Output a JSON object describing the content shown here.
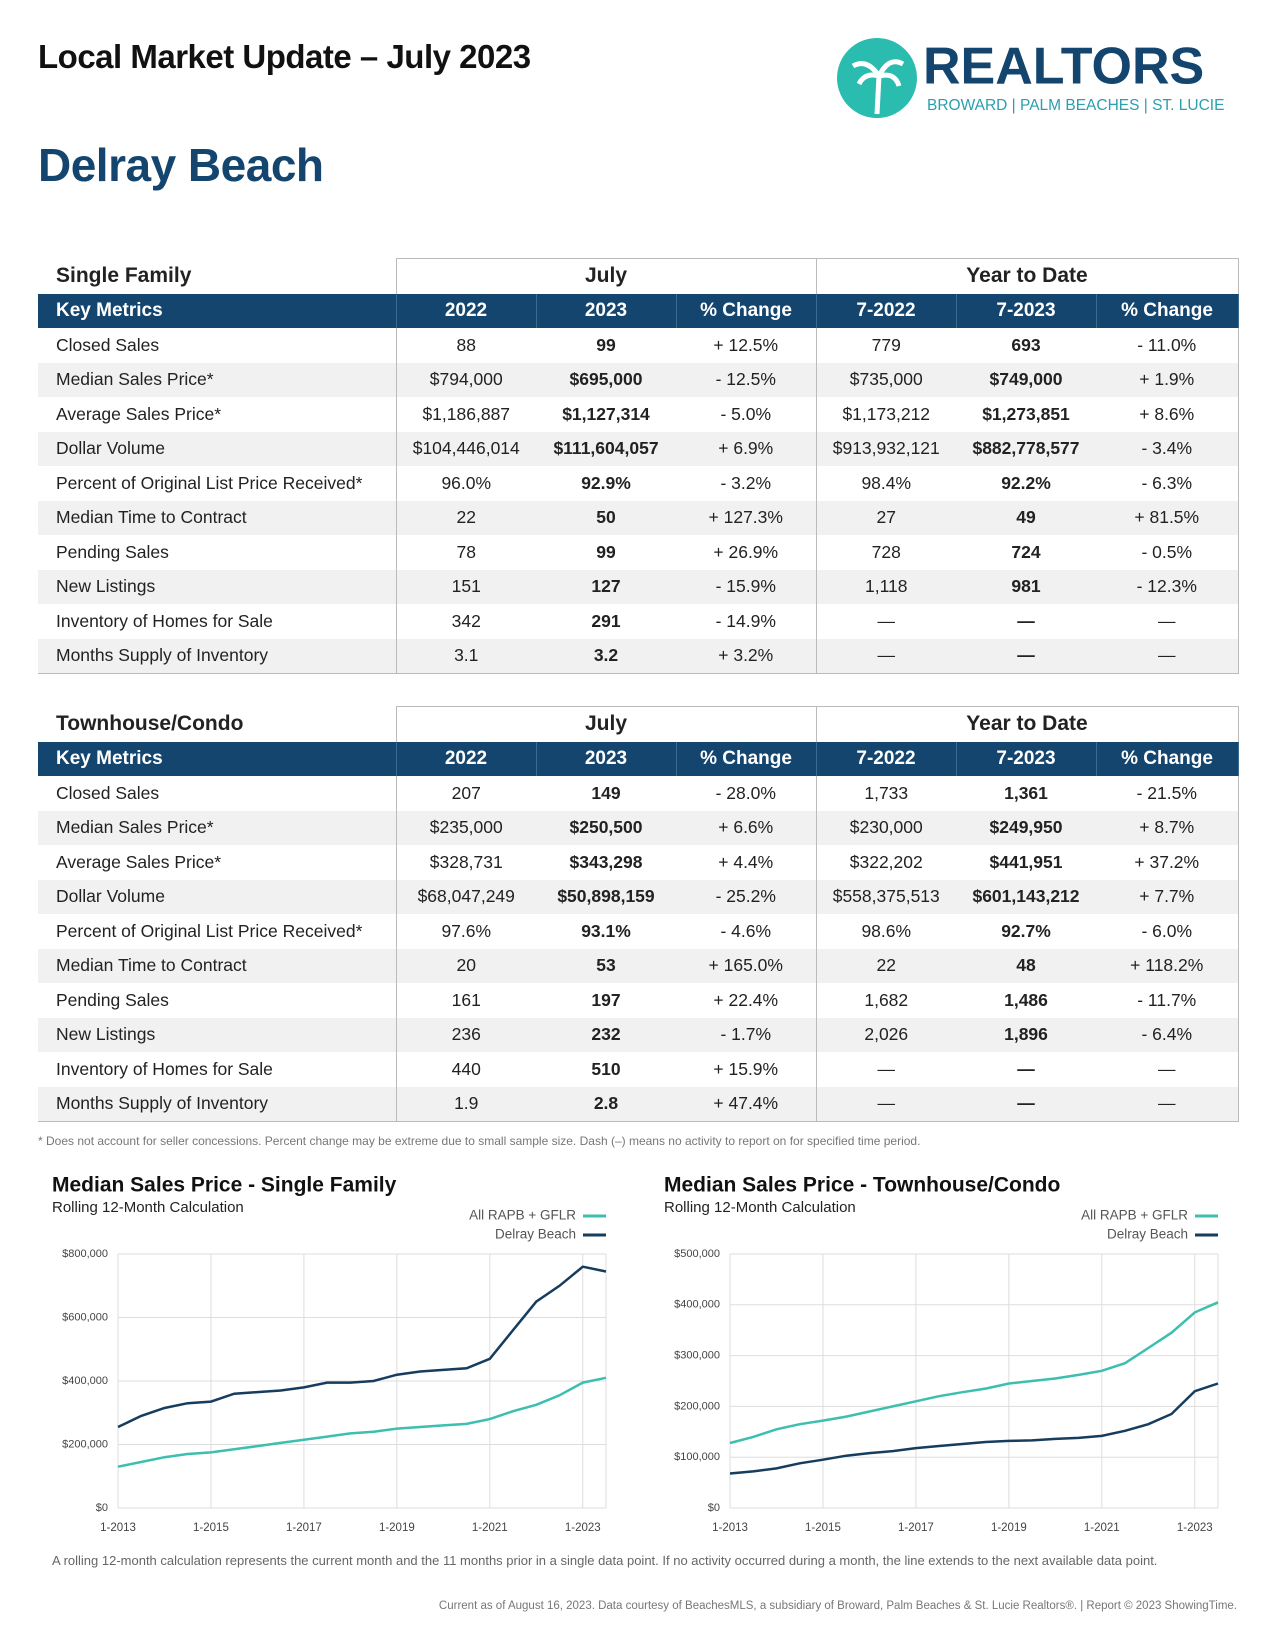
{
  "header": {
    "title": "Local Market Update – July 2023",
    "logo_name": "REALTORS",
    "logo_sub": "BROWARD | PALM BEACHES | ST. LUCIE"
  },
  "area": "Delray Beach",
  "tables": [
    {
      "section": "Single Family",
      "groups": [
        "July",
        "Year to Date"
      ],
      "columns": [
        "Key Metrics",
        "2022",
        "2023",
        "% Change",
        "7-2022",
        "7-2023",
        "% Change"
      ],
      "rows": [
        [
          "Closed Sales",
          "88",
          "99",
          "+ 12.5%",
          "779",
          "693",
          "- 11.0%"
        ],
        [
          "Median Sales Price*",
          "$794,000",
          "$695,000",
          "- 12.5%",
          "$735,000",
          "$749,000",
          "+ 1.9%"
        ],
        [
          "Average Sales Price*",
          "$1,186,887",
          "$1,127,314",
          "- 5.0%",
          "$1,173,212",
          "$1,273,851",
          "+ 8.6%"
        ],
        [
          "Dollar Volume",
          "$104,446,014",
          "$111,604,057",
          "+ 6.9%",
          "$913,932,121",
          "$882,778,577",
          "- 3.4%"
        ],
        [
          "Percent of Original List Price Received*",
          "96.0%",
          "92.9%",
          "- 3.2%",
          "98.4%",
          "92.2%",
          "- 6.3%"
        ],
        [
          "Median Time to Contract",
          "22",
          "50",
          "+ 127.3%",
          "27",
          "49",
          "+ 81.5%"
        ],
        [
          "Pending Sales",
          "78",
          "99",
          "+ 26.9%",
          "728",
          "724",
          "- 0.5%"
        ],
        [
          "New Listings",
          "151",
          "127",
          "- 15.9%",
          "1,118",
          "981",
          "- 12.3%"
        ],
        [
          "Inventory of Homes for Sale",
          "342",
          "291",
          "- 14.9%",
          "—",
          "—",
          "—"
        ],
        [
          "Months Supply of Inventory",
          "3.1",
          "3.2",
          "+ 3.2%",
          "—",
          "—",
          "—"
        ]
      ]
    },
    {
      "section": "Townhouse/Condo",
      "groups": [
        "July",
        "Year to Date"
      ],
      "columns": [
        "Key Metrics",
        "2022",
        "2023",
        "% Change",
        "7-2022",
        "7-2023",
        "% Change"
      ],
      "rows": [
        [
          "Closed Sales",
          "207",
          "149",
          "- 28.0%",
          "1,733",
          "1,361",
          "- 21.5%"
        ],
        [
          "Median Sales Price*",
          "$235,000",
          "$250,500",
          "+ 6.6%",
          "$230,000",
          "$249,950",
          "+ 8.7%"
        ],
        [
          "Average Sales Price*",
          "$328,731",
          "$343,298",
          "+ 4.4%",
          "$322,202",
          "$441,951",
          "+ 37.2%"
        ],
        [
          "Dollar Volume",
          "$68,047,249",
          "$50,898,159",
          "- 25.2%",
          "$558,375,513",
          "$601,143,212",
          "+ 7.7%"
        ],
        [
          "Percent of Original List Price Received*",
          "97.6%",
          "93.1%",
          "- 4.6%",
          "98.6%",
          "92.7%",
          "- 6.0%"
        ],
        [
          "Median Time to Contract",
          "20",
          "53",
          "+ 165.0%",
          "22",
          "48",
          "+ 118.2%"
        ],
        [
          "Pending Sales",
          "161",
          "197",
          "+ 22.4%",
          "1,682",
          "1,486",
          "- 11.7%"
        ],
        [
          "New Listings",
          "236",
          "232",
          "- 1.7%",
          "2,026",
          "1,896",
          "- 6.4%"
        ],
        [
          "Inventory of Homes for Sale",
          "440",
          "510",
          "+ 15.9%",
          "—",
          "—",
          "—"
        ],
        [
          "Months Supply of Inventory",
          "1.9",
          "2.8",
          "+ 47.4%",
          "—",
          "—",
          "—"
        ]
      ]
    }
  ],
  "footnote": "* Does not account for seller concessions. Percent change may be extreme due to small sample size. Dash (–) means no activity to report on for specified time period.",
  "chart_data": [
    {
      "type": "line",
      "title": "Median Sales Price - Single Family",
      "subtitle": "Rolling 12-Month Calculation",
      "x": [
        "1-2013",
        "7-2013",
        "1-2014",
        "7-2014",
        "1-2015",
        "7-2015",
        "1-2016",
        "7-2016",
        "1-2017",
        "7-2017",
        "1-2018",
        "7-2018",
        "1-2019",
        "7-2019",
        "1-2020",
        "7-2020",
        "1-2021",
        "7-2021",
        "1-2022",
        "7-2022",
        "1-2023",
        "7-2023"
      ],
      "series": [
        {
          "name": "All RAPB + GFLR",
          "color": "#3cbfae",
          "values": [
            130000,
            145000,
            160000,
            170000,
            175000,
            185000,
            195000,
            205000,
            215000,
            225000,
            235000,
            240000,
            250000,
            255000,
            260000,
            265000,
            280000,
            305000,
            325000,
            355000,
            395000,
            410000
          ]
        },
        {
          "name": "Delray Beach",
          "color": "#163c5e",
          "values": [
            255000,
            290000,
            315000,
            330000,
            335000,
            360000,
            365000,
            370000,
            380000,
            395000,
            395000,
            400000,
            420000,
            430000,
            435000,
            440000,
            470000,
            560000,
            650000,
            700000,
            760000,
            745000
          ]
        }
      ],
      "ylim": [
        0,
        800000
      ],
      "yticks": [
        {
          "value": 0,
          "label": "$0"
        },
        {
          "value": 200000,
          "label": "$200,000"
        },
        {
          "value": 400000,
          "label": "$400,000"
        },
        {
          "value": 600000,
          "label": "$600,000"
        },
        {
          "value": 800000,
          "label": "$800,000"
        }
      ],
      "xticks": [
        "1-2013",
        "1-2015",
        "1-2017",
        "1-2019",
        "1-2021",
        "1-2023"
      ],
      "grid": true
    },
    {
      "type": "line",
      "title": "Median Sales Price - Townhouse/Condo",
      "subtitle": "Rolling 12-Month Calculation",
      "x": [
        "1-2013",
        "7-2013",
        "1-2014",
        "7-2014",
        "1-2015",
        "7-2015",
        "1-2016",
        "7-2016",
        "1-2017",
        "7-2017",
        "1-2018",
        "7-2018",
        "1-2019",
        "7-2019",
        "1-2020",
        "7-2020",
        "1-2021",
        "7-2021",
        "1-2022",
        "7-2022",
        "1-2023",
        "7-2023"
      ],
      "series": [
        {
          "name": "All RAPB + GFLR",
          "color": "#3cbfae",
          "values": [
            128000,
            140000,
            155000,
            165000,
            172000,
            180000,
            190000,
            200000,
            210000,
            220000,
            228000,
            235000,
            245000,
            250000,
            255000,
            262000,
            270000,
            285000,
            315000,
            345000,
            385000,
            405000
          ]
        },
        {
          "name": "Delray Beach",
          "color": "#163c5e",
          "values": [
            68000,
            72000,
            78000,
            88000,
            95000,
            103000,
            108000,
            112000,
            118000,
            122000,
            126000,
            130000,
            132000,
            133000,
            136000,
            138000,
            142000,
            152000,
            165000,
            185000,
            230000,
            245000
          ]
        }
      ],
      "ylim": [
        0,
        500000
      ],
      "yticks": [
        {
          "value": 0,
          "label": "$0"
        },
        {
          "value": 100000,
          "label": "$100,000"
        },
        {
          "value": 200000,
          "label": "$200,000"
        },
        {
          "value": 300000,
          "label": "$300,000"
        },
        {
          "value": 400000,
          "label": "$400,000"
        },
        {
          "value": 500000,
          "label": "$500,000"
        }
      ],
      "xticks": [
        "1-2013",
        "1-2015",
        "1-2017",
        "1-2019",
        "1-2021",
        "1-2023"
      ],
      "grid": true
    }
  ],
  "chart_note": "A rolling 12-month calculation represents the current month and the 11 months prior in a single data point. If no activity occurred during a month, the line extends to the next available data point.",
  "footer": "Current as of August 16, 2023. Data courtesy of BeachesMLS, a subsidiary of Broward, Palm Beaches & St. Lucie Realtors®. | Report © 2023 ShowingTime."
}
